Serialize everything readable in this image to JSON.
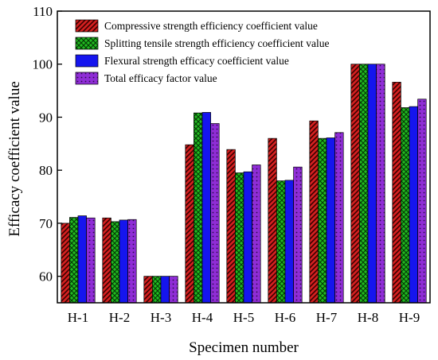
{
  "chart_data": {
    "type": "bar",
    "xlabel": "Specimen number",
    "ylabel": "Efficacy coefficient value",
    "ylim": [
      55,
      110
    ],
    "yticks": [
      60,
      70,
      80,
      90,
      100,
      110
    ],
    "grid": false,
    "legend_position": "top-left",
    "categories": [
      "H-1",
      "H-2",
      "H-3",
      "H-4",
      "H-5",
      "H-6",
      "H-7",
      "H-8",
      "H-9"
    ],
    "series": [
      {
        "name": "Compressive strength efficiency coefficient value",
        "color": "#d42020",
        "pattern": "diagonal-hatch",
        "values": [
          70.0,
          71.0,
          60.0,
          84.8,
          83.9,
          86.0,
          89.3,
          100.0,
          96.6
        ]
      },
      {
        "name": "Splitting tensile strength efficiency coefficient value",
        "color": "#22bb22",
        "pattern": "cross-hatch",
        "values": [
          71.1,
          70.3,
          60.0,
          90.8,
          79.5,
          78.0,
          86.0,
          100.0,
          91.8
        ]
      },
      {
        "name": "Flexural strength efficacy coefficient value",
        "color": "#1515ee",
        "pattern": "solid",
        "values": [
          71.4,
          70.6,
          60.0,
          90.9,
          79.7,
          78.1,
          86.1,
          100.0,
          92.0
        ]
      },
      {
        "name": "Total efficacy factor value",
        "color": "#8f2dd6",
        "pattern": "dotted",
        "values": [
          71.0,
          70.7,
          60.0,
          88.8,
          81.0,
          80.6,
          87.1,
          100.0,
          93.4
        ]
      }
    ]
  }
}
